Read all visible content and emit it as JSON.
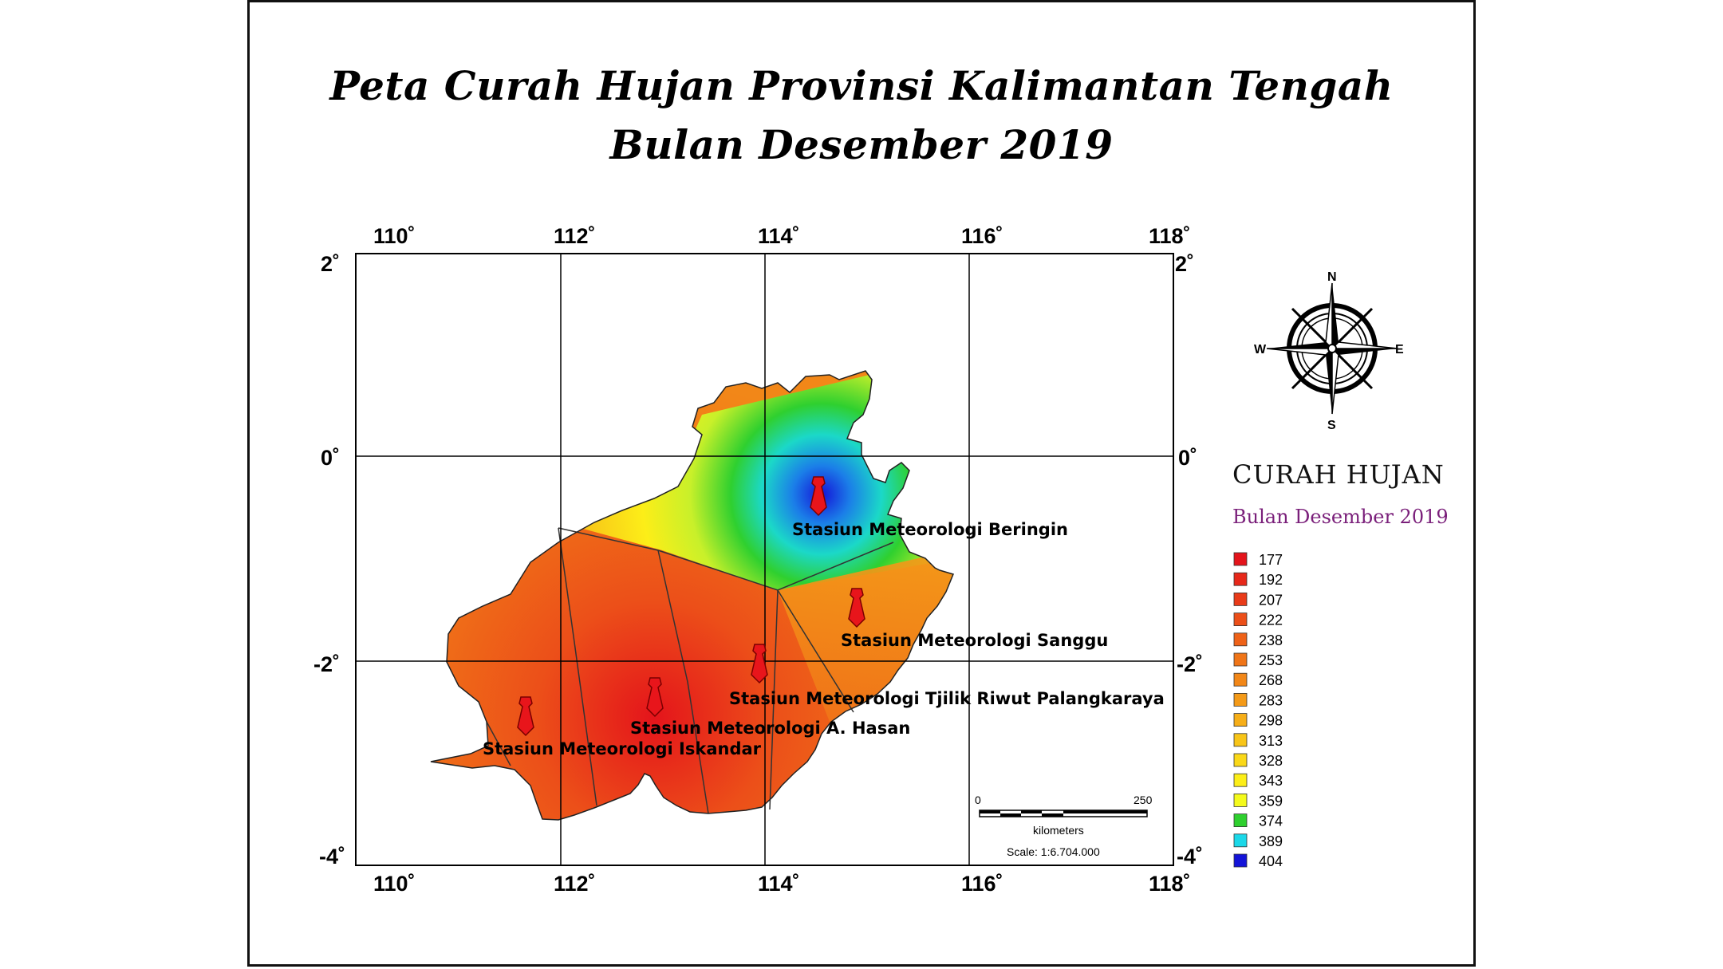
{
  "title": {
    "line1": "Peta Curah Hujan Provinsi Kalimantan Tengah",
    "line2": "Bulan Desember 2019"
  },
  "axes": {
    "longitude_ticks": [
      "110˚",
      "112˚",
      "114˚",
      "116˚",
      "118˚"
    ],
    "latitude_ticks": [
      "2˚",
      "0˚",
      "-2˚",
      "-4˚"
    ]
  },
  "compass": {
    "n": "N",
    "s": "S",
    "e": "E",
    "w": "W",
    "icon": "compass-rose-icon"
  },
  "legend": {
    "title": "CURAH HUJAN",
    "subtitle": "Bulan Desember 2019",
    "items": [
      {
        "value": "177",
        "color": "#e4141b"
      },
      {
        "value": "192",
        "color": "#e7281a"
      },
      {
        "value": "207",
        "color": "#e93b19"
      },
      {
        "value": "222",
        "color": "#ec4f19"
      },
      {
        "value": "238",
        "color": "#ef6218"
      },
      {
        "value": "253",
        "color": "#f07518"
      },
      {
        "value": "268",
        "color": "#f28718"
      },
      {
        "value": "283",
        "color": "#f49a18"
      },
      {
        "value": "298",
        "color": "#f6ae18"
      },
      {
        "value": "313",
        "color": "#f8c518"
      },
      {
        "value": "328",
        "color": "#fad818"
      },
      {
        "value": "343",
        "color": "#fcee18"
      },
      {
        "value": "359",
        "color": "#f4fa1c"
      },
      {
        "value": "374",
        "color": "#2fd02f"
      },
      {
        "value": "389",
        "color": "#1bd8e8"
      },
      {
        "value": "404",
        "color": "#1414d8"
      }
    ]
  },
  "stations": [
    {
      "name": "Stasiun Meteorologi Beringin"
    },
    {
      "name": "Stasiun Meteorologi Sanggu"
    },
    {
      "name": "Stasiun Meteorologi  Tjilik Riwut Palangkaraya"
    },
    {
      "name": "Stasiun Meteorologi A. Hasan"
    },
    {
      "name": "Stasiun Meteorologi Iskandar"
    }
  ],
  "scalebar": {
    "start": "0",
    "end": "250",
    "unit": "kilometers",
    "scale": "Scale: 1:6.704.000"
  }
}
